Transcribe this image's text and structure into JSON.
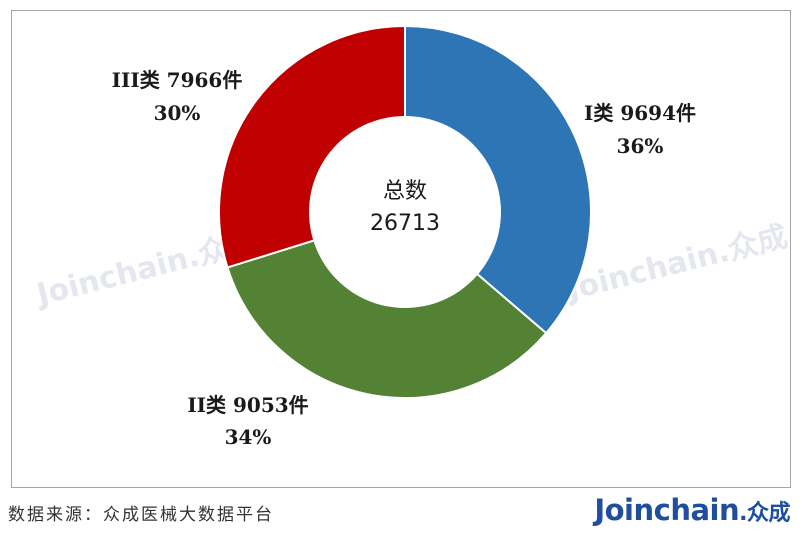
{
  "chart_data": {
    "type": "pie",
    "variant": "donut",
    "center_title": "总数",
    "center_value": "26713",
    "slices": [
      {
        "name": "I类",
        "count": 9694,
        "unit": "件",
        "percent": 36,
        "color": "#2e75b6"
      },
      {
        "name": "II类",
        "count": 9053,
        "unit": "件",
        "percent": 34,
        "color": "#548235"
      },
      {
        "name": "III类",
        "count": 7966,
        "unit": "件",
        "percent": 30,
        "color": "#c00000"
      }
    ],
    "labels": [
      {
        "line1": "I类 9694件",
        "line2": "36%"
      },
      {
        "line1": "II类 9053件",
        "line2": "34%"
      },
      {
        "line1": "III类 7966件",
        "line2": "30%"
      }
    ]
  },
  "watermark": {
    "text": "Joinchain",
    "cn": "众成"
  },
  "footer": {
    "source": "数据来源：众成医械大数据平台",
    "logo_text": "Joinchain",
    "logo_cn": "众成"
  }
}
